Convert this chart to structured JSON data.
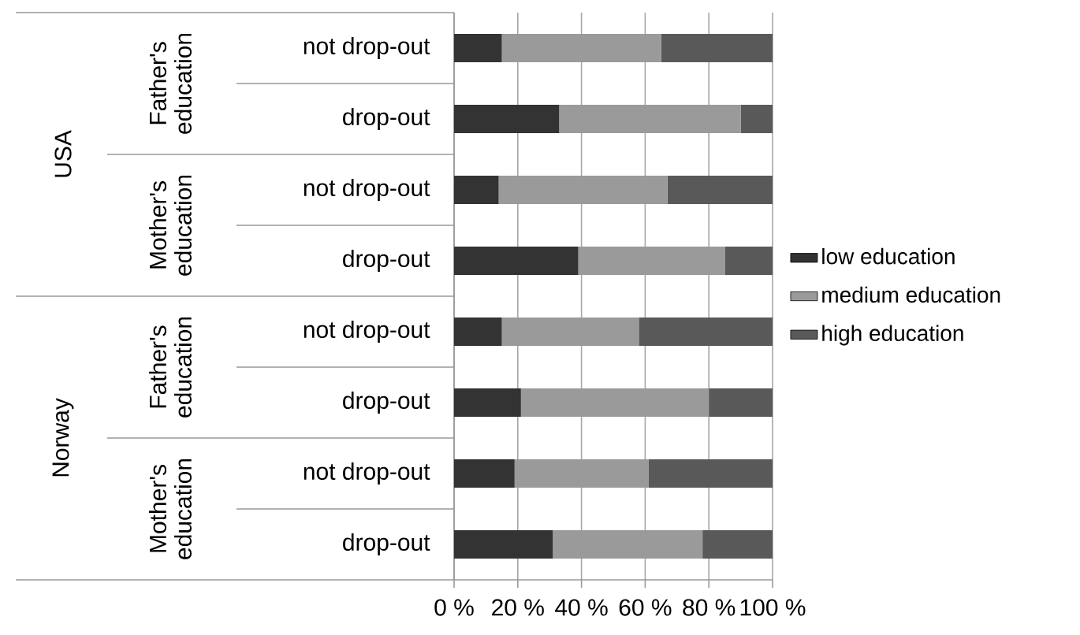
{
  "chart_data": {
    "type": "bar",
    "orientation": "horizontal",
    "stacked": true,
    "categories": [
      "not drop-out",
      "drop-out",
      "not drop-out",
      "drop-out",
      "not drop-out",
      "drop-out",
      "not drop-out",
      "drop-out"
    ],
    "series": [
      {
        "name": "low education",
        "color": "#333333",
        "values": [
          15,
          33,
          14,
          39,
          15,
          21,
          19,
          31
        ]
      },
      {
        "name": "medium education",
        "color": "#9a9a9a",
        "values": [
          50,
          57,
          53,
          46,
          43,
          59,
          42,
          47
        ]
      },
      {
        "name": "high education",
        "color": "#595959",
        "values": [
          35,
          10,
          33,
          15,
          42,
          20,
          39,
          22
        ]
      }
    ],
    "xlim": [
      0,
      100
    ],
    "xticks": [
      {
        "value": 0,
        "label": "0 %"
      },
      {
        "value": 20,
        "label": "20 %"
      },
      {
        "value": 40,
        "label": "40 %"
      },
      {
        "value": 60,
        "label": "60 %"
      },
      {
        "value": 80,
        "label": "80 %"
      },
      {
        "value": 100,
        "label": "100 %"
      }
    ],
    "grid": "x",
    "legend": "right",
    "annotations": [
      "USA",
      "Norway",
      "Father's education",
      "Mother's education",
      "Father's education",
      "Mother's education"
    ]
  }
}
